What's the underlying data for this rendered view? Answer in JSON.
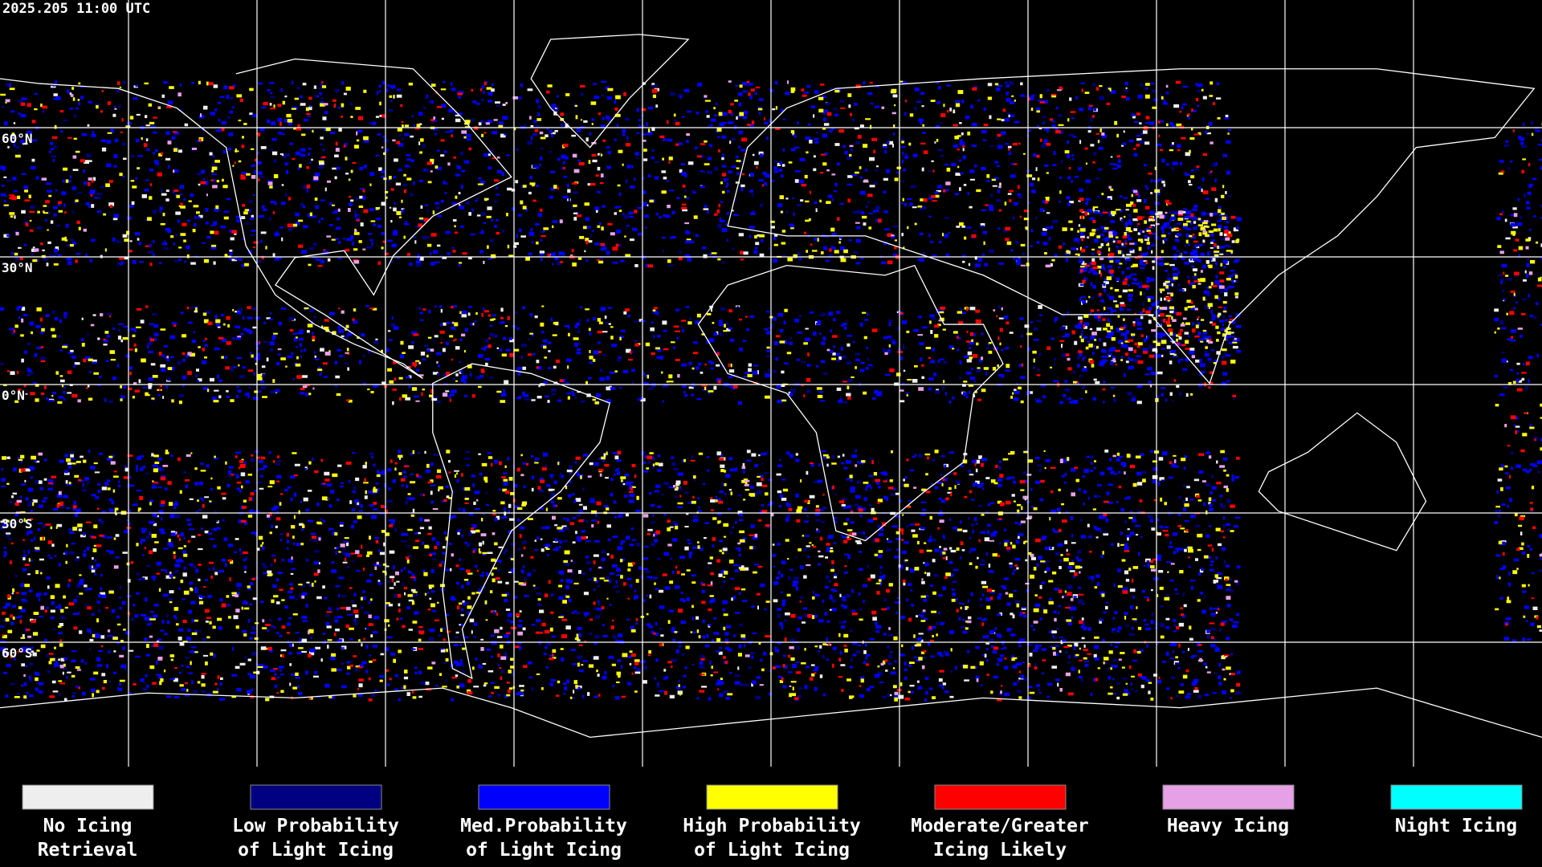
{
  "header": {
    "timestamp": "2025.205 11:00 UTC"
  },
  "map": {
    "latitude_labels": [
      "60°N",
      "30°N",
      "0°N",
      "30°S",
      "60°S"
    ]
  },
  "legend": {
    "items": [
      {
        "color": "#eeeeee",
        "lines": [
          "No Icing",
          "Retrieval"
        ]
      },
      {
        "color": "#000080",
        "lines": [
          "Low Probability",
          "of Light Icing"
        ]
      },
      {
        "color": "#0000ff",
        "lines": [
          "Med.Probability",
          "of Light Icing"
        ]
      },
      {
        "color": "#ffff00",
        "lines": [
          "High Probability",
          "of Light Icing"
        ]
      },
      {
        "color": "#ff0000",
        "lines": [
          "Moderate/Greater",
          "Icing Likely"
        ]
      },
      {
        "color": "#e6a0e6",
        "lines": [
          "Heavy Icing"
        ]
      },
      {
        "color": "#00ffff",
        "lines": [
          "Night Icing"
        ]
      }
    ]
  }
}
